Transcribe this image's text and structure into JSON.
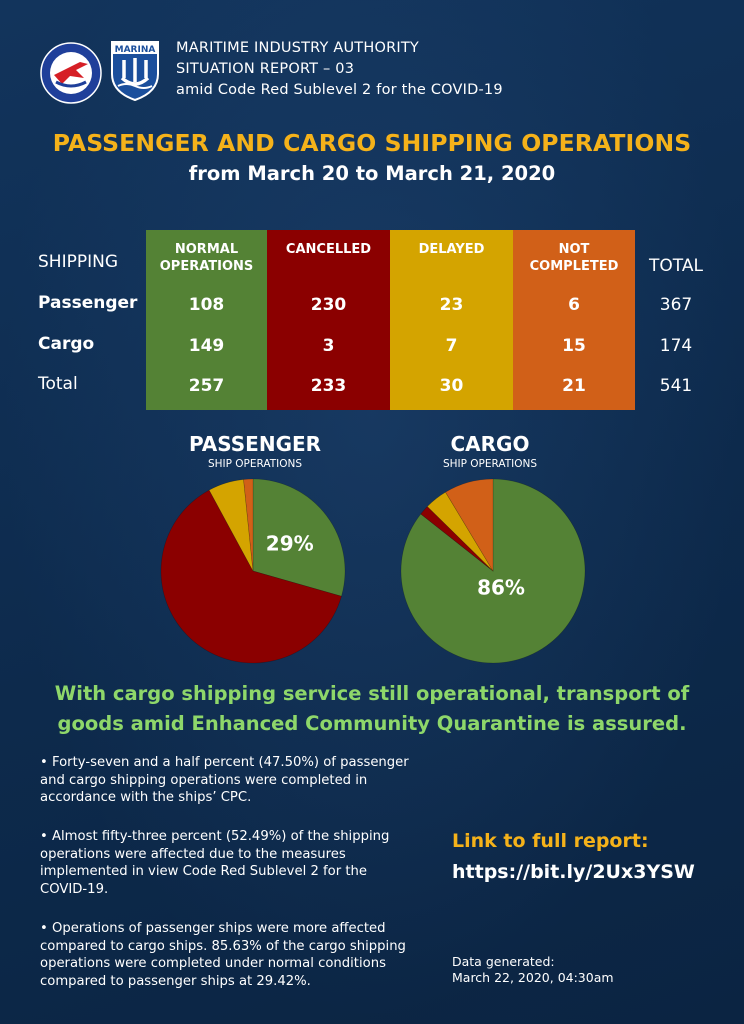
{
  "header": {
    "line1": "MARITIME INDUSTRY AUTHORITY",
    "line2": "SITUATION REPORT – 03",
    "line3": "amid Code Red Sublevel 2 for the COVID-19",
    "logo_text": "MARINA"
  },
  "title": "PASSENGER AND CARGO SHIPPING OPERATIONS",
  "subtitle": "from March 20 to March 21, 2020",
  "colors": {
    "normal": "#548235",
    "cancelled": "#8b0000",
    "delayed": "#d4a400",
    "not_completed": "#d16018",
    "accent": "#f5b21a",
    "banner": "#8ed76a"
  },
  "chart_data": [
    {
      "type": "table",
      "columns": [
        "SHIPPING",
        "NORMAL OPERATIONS",
        "CANCELLED",
        "DELAYED",
        "NOT COMPLETED",
        "TOTAL"
      ],
      "column_labels": {
        "shipping": "SHIPPING",
        "normal_1": "NORMAL",
        "normal_2": "OPERATIONS",
        "cancelled": "CANCELLED",
        "delayed": "DELAYED",
        "notc_1": "NOT",
        "notc_2": "COMPLETED",
        "total": "TOTAL"
      },
      "rows": [
        {
          "label": "Passenger",
          "normal": "108",
          "cancelled": "230",
          "delayed": "23",
          "not_completed": "6",
          "total": "367"
        },
        {
          "label": "Cargo",
          "normal": "149",
          "cancelled": "3",
          "delayed": "7",
          "not_completed": "15",
          "total": "174"
        },
        {
          "label": "Total",
          "normal": "257",
          "cancelled": "233",
          "delayed": "30",
          "not_completed": "21",
          "total": "541"
        }
      ]
    },
    {
      "type": "pie",
      "title": "PASSENGER",
      "subtitle": "SHIP OPERATIONS",
      "categories": [
        "Normal Operations",
        "Cancelled",
        "Delayed",
        "Not Completed"
      ],
      "values": [
        108,
        230,
        23,
        6
      ],
      "label": "29%"
    },
    {
      "type": "pie",
      "title": "CARGO",
      "subtitle": "SHIP OPERATIONS",
      "categories": [
        "Normal Operations",
        "Cancelled",
        "Delayed",
        "Not Completed"
      ],
      "values": [
        149,
        3,
        7,
        15
      ],
      "label": "86%"
    }
  ],
  "banner": {
    "line1": "With cargo shipping service still operational, transport of",
    "line2": "goods amid Enhanced Community Quarantine is assured."
  },
  "bullets": [
    "Forty-seven and a half percent (47.50%) of passenger and cargo shipping operations were completed in accordance with the ships’ CPC.",
    "Almost fifty-three percent (52.49%) of the shipping operations were affected due to the measures implemented in view Code Red Sublevel 2 for the COVID-19.",
    "Operations of passenger ships were more affected compared to cargo ships. 85.63% of the cargo shipping operations were completed under normal conditions compared to passenger ships at 29.42%."
  ],
  "link": {
    "label": "Link to full report:",
    "url": "https://bit.ly/2Ux3YSW"
  },
  "generated": {
    "label": "Data generated:",
    "value": "March 22, 2020, 04:30am"
  }
}
